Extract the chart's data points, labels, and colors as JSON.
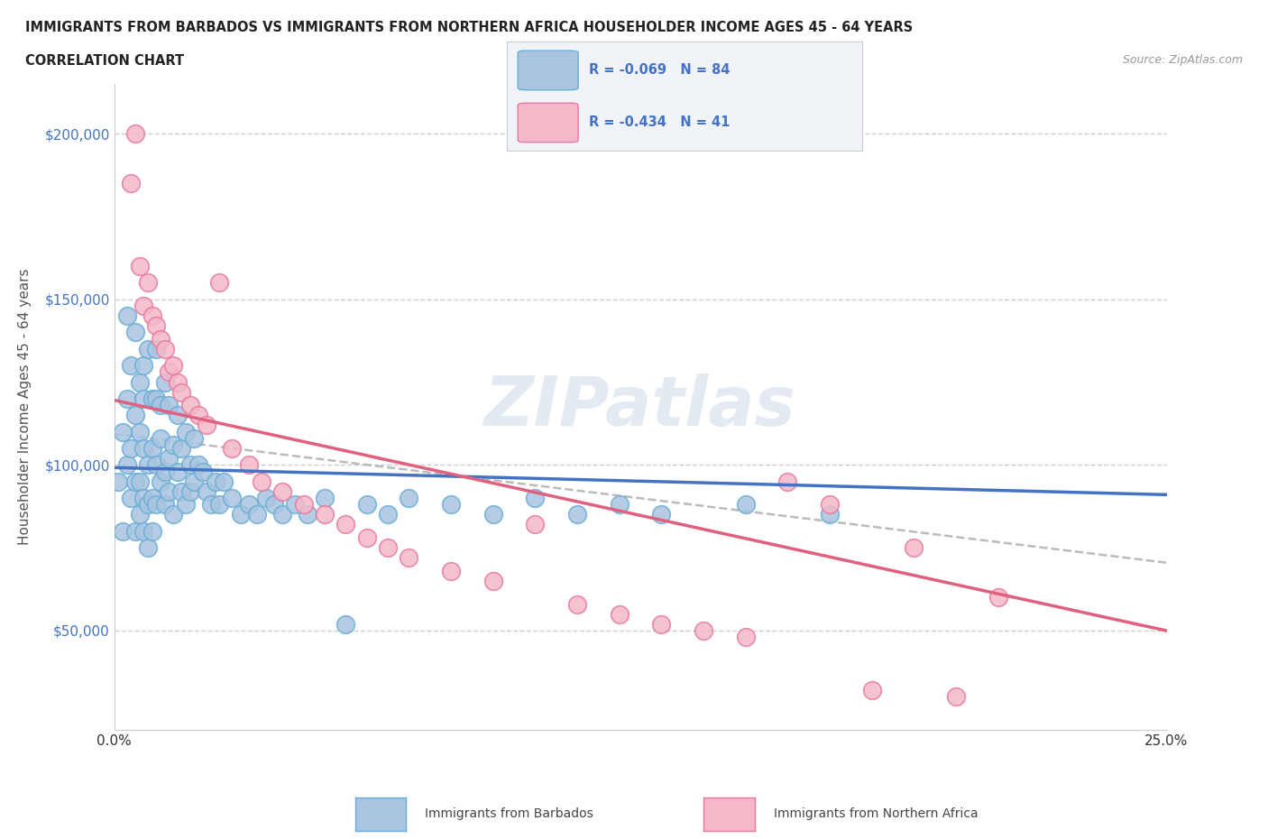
{
  "title_line1": "IMMIGRANTS FROM BARBADOS VS IMMIGRANTS FROM NORTHERN AFRICA HOUSEHOLDER INCOME AGES 45 - 64 YEARS",
  "title_line2": "CORRELATION CHART",
  "source_text": "Source: ZipAtlas.com",
  "ylabel": "Householder Income Ages 45 - 64 years",
  "xlim": [
    0.0,
    0.25
  ],
  "ylim": [
    20000,
    215000
  ],
  "yticks": [
    50000,
    100000,
    150000,
    200000
  ],
  "ytick_labels": [
    "$50,000",
    "$100,000",
    "$150,000",
    "$200,000"
  ],
  "watermark": "ZIPatlas",
  "barbados_color": "#a8c4e0",
  "barbados_edge": "#6aaed6",
  "nafrica_color": "#f4b8c8",
  "nafrica_edge": "#e87aa0",
  "trend_blue": "#4472c4",
  "trend_pink": "#e06080",
  "trend_gray": "#aaaaaa",
  "R_barbados": -0.069,
  "N_barbados": 84,
  "R_nafrica": -0.434,
  "N_nafrica": 41,
  "barbados_x": [
    0.001,
    0.002,
    0.002,
    0.003,
    0.003,
    0.003,
    0.004,
    0.004,
    0.004,
    0.005,
    0.005,
    0.005,
    0.005,
    0.006,
    0.006,
    0.006,
    0.006,
    0.007,
    0.007,
    0.007,
    0.007,
    0.007,
    0.008,
    0.008,
    0.008,
    0.008,
    0.009,
    0.009,
    0.009,
    0.009,
    0.01,
    0.01,
    0.01,
    0.01,
    0.011,
    0.011,
    0.011,
    0.012,
    0.012,
    0.012,
    0.013,
    0.013,
    0.013,
    0.014,
    0.014,
    0.015,
    0.015,
    0.016,
    0.016,
    0.017,
    0.017,
    0.018,
    0.018,
    0.019,
    0.019,
    0.02,
    0.021,
    0.022,
    0.023,
    0.024,
    0.025,
    0.026,
    0.028,
    0.03,
    0.032,
    0.034,
    0.036,
    0.038,
    0.04,
    0.043,
    0.046,
    0.05,
    0.055,
    0.06,
    0.065,
    0.07,
    0.08,
    0.09,
    0.1,
    0.11,
    0.12,
    0.13,
    0.15,
    0.17
  ],
  "barbados_y": [
    95000,
    110000,
    80000,
    120000,
    100000,
    145000,
    90000,
    105000,
    130000,
    115000,
    95000,
    80000,
    140000,
    125000,
    95000,
    110000,
    85000,
    130000,
    120000,
    105000,
    90000,
    80000,
    135000,
    100000,
    88000,
    75000,
    120000,
    105000,
    90000,
    80000,
    135000,
    100000,
    88000,
    120000,
    118000,
    95000,
    108000,
    125000,
    98000,
    88000,
    102000,
    118000,
    92000,
    106000,
    85000,
    115000,
    98000,
    105000,
    92000,
    110000,
    88000,
    100000,
    92000,
    95000,
    108000,
    100000,
    98000,
    92000,
    88000,
    95000,
    88000,
    95000,
    90000,
    85000,
    88000,
    85000,
    90000,
    88000,
    85000,
    88000,
    85000,
    90000,
    52000,
    88000,
    85000,
    90000,
    88000,
    85000,
    90000,
    85000,
    88000,
    85000,
    88000,
    85000
  ],
  "nafrica_x": [
    0.004,
    0.005,
    0.006,
    0.007,
    0.008,
    0.009,
    0.01,
    0.011,
    0.012,
    0.013,
    0.014,
    0.015,
    0.016,
    0.018,
    0.02,
    0.022,
    0.025,
    0.028,
    0.032,
    0.035,
    0.04,
    0.045,
    0.05,
    0.055,
    0.06,
    0.065,
    0.07,
    0.08,
    0.09,
    0.1,
    0.11,
    0.12,
    0.13,
    0.14,
    0.15,
    0.16,
    0.17,
    0.18,
    0.19,
    0.2,
    0.21
  ],
  "nafrica_y": [
    185000,
    200000,
    160000,
    148000,
    155000,
    145000,
    142000,
    138000,
    135000,
    128000,
    130000,
    125000,
    122000,
    118000,
    115000,
    112000,
    155000,
    105000,
    100000,
    95000,
    92000,
    88000,
    85000,
    82000,
    78000,
    75000,
    72000,
    68000,
    65000,
    82000,
    58000,
    55000,
    52000,
    50000,
    48000,
    95000,
    88000,
    32000,
    75000,
    30000,
    60000
  ]
}
